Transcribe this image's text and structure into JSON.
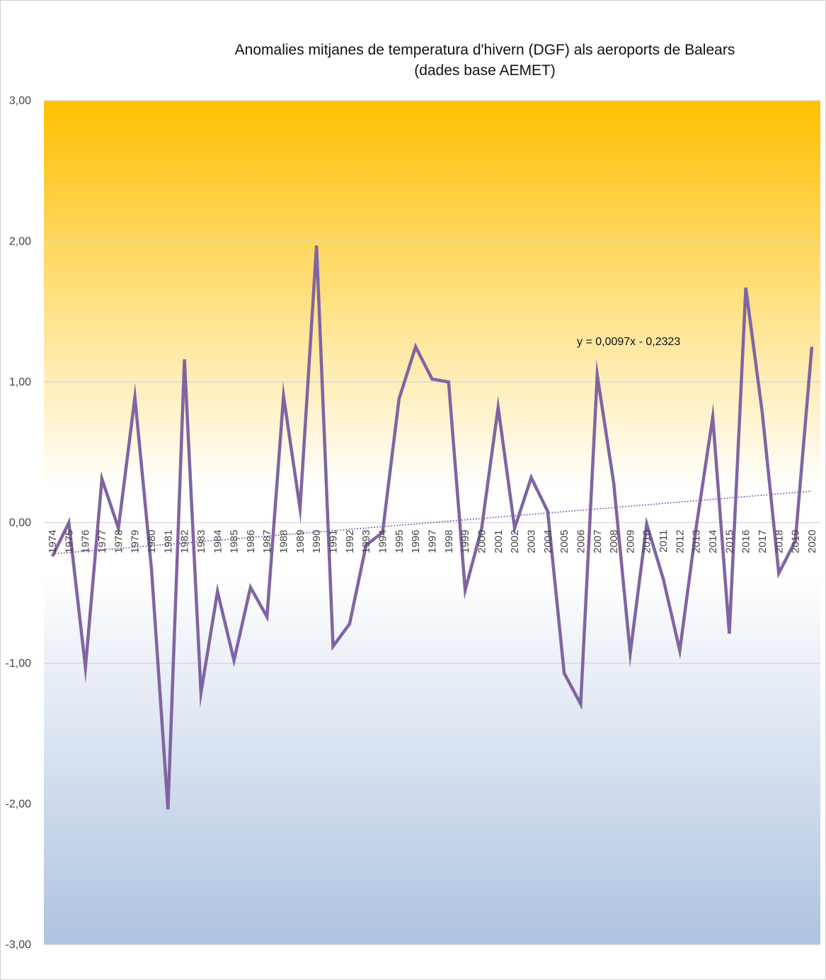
{
  "chart_data": {
    "type": "line",
    "title": "Anomalies mitjanes de temperatura d'hivern (DGF) als aeroports de Balears",
    "subtitle": "(dades base AEMET)",
    "xlabel": "",
    "ylabel": "",
    "ylim": [
      -3,
      3
    ],
    "y_ticks": [
      "-3,00",
      "-2,00",
      "-1,00",
      "0,00",
      "1,00",
      "2,00",
      "3,00"
    ],
    "y_tick_values": [
      -3,
      -2,
      -1,
      0,
      1,
      2,
      3
    ],
    "grid": true,
    "legend": "none",
    "categories": [
      "1974",
      "1975",
      "1976",
      "1977",
      "1978",
      "1979",
      "1980",
      "1981",
      "1982",
      "1983",
      "1984",
      "1985",
      "1986",
      "1987",
      "1988",
      "1989",
      "1990",
      "1991",
      "1992",
      "1993",
      "1994",
      "1995",
      "1996",
      "1997",
      "1998",
      "1999",
      "2000",
      "2001",
      "2002",
      "2003",
      "2004",
      "2005",
      "2006",
      "2007",
      "2008",
      "2009",
      "2010",
      "2011",
      "2012",
      "2013",
      "2014",
      "2015",
      "2016",
      "2017",
      "2018",
      "2019",
      "2020"
    ],
    "series": [
      {
        "color": "#8064a2",
        "values": [
          -0.24,
          0.0,
          -1.03,
          0.31,
          -0.04,
          0.89,
          -0.33,
          -2.04,
          1.16,
          -1.21,
          -0.49,
          -0.98,
          -0.46,
          -0.67,
          0.9,
          0.1,
          1.97,
          -0.88,
          -0.72,
          -0.16,
          -0.07,
          0.88,
          1.25,
          1.02,
          1.0,
          -0.48,
          -0.04,
          0.82,
          -0.04,
          0.32,
          0.08,
          -1.07,
          -1.29,
          1.05,
          0.28,
          -0.93,
          -0.01,
          -0.4,
          -0.91,
          -0.03,
          0.75,
          -0.79,
          1.67,
          0.78,
          -0.36,
          -0.13,
          1.25
        ]
      }
    ],
    "trendline": {
      "equation": "y = 0,0097x - 0,2323",
      "slope": 0.0097,
      "intercept": -0.2323,
      "color": "#7030a0"
    },
    "background_colors": {
      "top": "#ffc000",
      "middle": "#ffffff",
      "bottom": "#aec3df"
    }
  }
}
